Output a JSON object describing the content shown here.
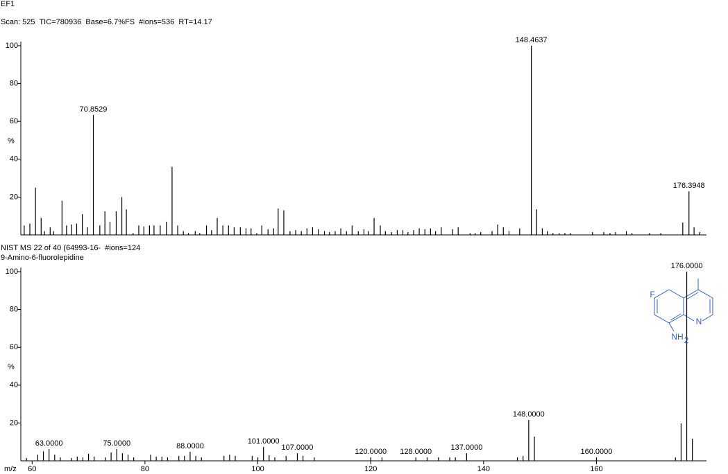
{
  "chart_data": [
    {
      "type": "stem",
      "title": "EF1",
      "subtitle": "Scan: 525  TIC=780936  Base=6.7%FS  #ions=536  RT=14.17",
      "ylabel": "%",
      "color": "#000000",
      "xlim": [
        58,
        179.5
      ],
      "ylim": [
        0,
        100
      ],
      "yticks": [
        20,
        40,
        60,
        80,
        100
      ],
      "x": [
        58.6,
        59.6,
        60.6,
        61.6,
        62.2,
        63.2,
        63.8,
        65.3,
        66.1,
        67.0,
        67.9,
        68.9,
        69.8,
        70.8529,
        72.0,
        72.9,
        73.8,
        74.9,
        75.9,
        76.7,
        77.9,
        78.9,
        79.8,
        80.8,
        81.6,
        82.7,
        83.8,
        84.8,
        85.8,
        86.8,
        87.7,
        88.9,
        89.7,
        90.9,
        91.8,
        92.8,
        93.8,
        94.8,
        95.8,
        96.9,
        97.9,
        98.8,
        99.8,
        100.7,
        101.8,
        102.8,
        103.6,
        104.6,
        105.7,
        106.7,
        107.7,
        108.7,
        109.7,
        110.7,
        111.8,
        112.7,
        113.7,
        114.7,
        115.7,
        116.7,
        117.8,
        118.8,
        119.6,
        120.6,
        121.7,
        122.6,
        123.7,
        124.7,
        125.7,
        126.6,
        127.6,
        128.6,
        129.6,
        130.6,
        131.5,
        132.5,
        134.5,
        135.5,
        137.6,
        138.5,
        139.5,
        141.5,
        142.5,
        143.5,
        144.5,
        146.4,
        148.4637,
        149.4,
        150.4,
        151.3,
        152.3,
        153.4,
        154.4,
        155.4,
        159.3,
        161.3,
        162.4,
        163.4,
        165.3,
        166.3,
        169.4,
        171.4,
        175.3,
        176.3948,
        177.3,
        178.3
      ],
      "values": [
        5,
        6,
        25,
        9,
        2,
        4,
        2,
        18,
        5,
        5.5,
        6,
        11,
        4,
        63.4,
        5,
        12.5,
        7,
        12.5,
        20,
        13.5,
        1,
        5,
        4.5,
        5,
        5,
        5,
        7,
        36,
        5,
        2,
        1,
        2,
        1,
        5,
        2.5,
        9,
        5,
        5,
        4,
        4,
        3.5,
        3.5,
        1,
        5,
        3,
        3.5,
        14,
        13,
        2,
        2.5,
        2,
        3.5,
        4,
        3,
        2,
        1.5,
        2,
        3.5,
        2,
        5,
        2,
        3,
        2,
        9,
        5,
        2,
        1.5,
        2.5,
        2.5,
        1.5,
        2.5,
        3.5,
        3,
        3.5,
        2,
        4,
        3,
        4,
        1,
        1,
        1.5,
        2,
        5.5,
        4,
        2,
        3.5,
        100,
        13.5,
        3.5,
        2,
        1,
        1,
        1,
        1,
        1.5,
        1.5,
        1,
        1.5,
        2,
        1,
        1,
        1,
        6.5,
        23,
        4,
        1.5
      ],
      "x_labels": [
        null,
        null,
        null,
        null,
        null,
        null,
        null,
        null,
        null,
        null,
        null,
        null,
        null,
        "70.8529",
        null,
        null,
        null,
        null,
        null,
        null,
        null,
        null,
        null,
        null,
        null,
        null,
        null,
        null,
        null,
        null,
        null,
        null,
        null,
        null,
        null,
        null,
        null,
        null,
        null,
        null,
        null,
        null,
        null,
        null,
        null,
        null,
        null,
        null,
        null,
        null,
        null,
        null,
        null,
        null,
        null,
        null,
        null,
        null,
        null,
        null,
        null,
        null,
        null,
        null,
        null,
        null,
        null,
        null,
        null,
        null,
        null,
        null,
        null,
        null,
        null,
        null,
        null,
        null,
        null,
        null,
        null,
        null,
        null,
        null,
        null,
        null,
        "148.4637",
        null,
        null,
        null,
        null,
        null,
        null,
        null,
        null,
        null,
        null,
        null,
        null,
        null,
        null,
        null,
        null,
        "176.3948",
        null,
        null
      ]
    },
    {
      "type": "stem",
      "title": "NIST MS 22 of 40 (64993-16-  #ions=124",
      "subtitle": "9-Amino-6-fluorolepidine",
      "ylabel": "%",
      "xlabel": "m/z",
      "color": "#000000",
      "xlim": [
        58,
        179.5
      ],
      "ylim": [
        0,
        100
      ],
      "yticks": [
        20,
        40,
        60,
        80,
        100
      ],
      "xticks": [
        60,
        80,
        100,
        120,
        140,
        160
      ],
      "x": [
        59,
        61,
        62,
        63,
        64,
        65,
        67,
        68,
        69,
        70,
        71,
        73,
        74,
        75,
        76,
        77,
        78,
        81,
        82,
        83,
        84,
        86,
        87,
        88,
        89,
        90,
        94,
        95,
        96,
        99,
        100,
        101,
        102,
        103,
        105,
        107,
        108,
        110,
        120,
        122,
        128,
        130,
        132,
        134,
        135,
        137,
        146,
        147,
        148,
        149,
        160,
        174,
        175,
        176,
        177
      ],
      "values": [
        1.5,
        3.3,
        5,
        6.2,
        3.3,
        1.8,
        1.5,
        2.2,
        1.8,
        3.7,
        2.2,
        1.8,
        4.4,
        6.2,
        4,
        3.3,
        1.8,
        3.3,
        2.2,
        2.2,
        1.8,
        2.6,
        2.6,
        4.8,
        2.6,
        1.8,
        2.6,
        3.3,
        2.6,
        2.6,
        1.8,
        7.3,
        3,
        1.8,
        2.6,
        4,
        2.6,
        1.8,
        1.8,
        1.8,
        1.8,
        1.8,
        1.8,
        1.8,
        1.8,
        4,
        1.8,
        2.6,
        21.6,
        12.8,
        1.8,
        1.8,
        19.8,
        100,
        11.7
      ],
      "x_labels": [
        null,
        null,
        null,
        "63.0000",
        null,
        null,
        null,
        null,
        null,
        null,
        null,
        null,
        null,
        "75.0000",
        null,
        null,
        null,
        null,
        null,
        null,
        null,
        null,
        null,
        "88.0000",
        null,
        null,
        null,
        null,
        null,
        null,
        null,
        "101.0000",
        null,
        null,
        null,
        "107.0000",
        null,
        null,
        "120.0000",
        null,
        "128.0000",
        null,
        null,
        null,
        null,
        "137.0000",
        null,
        null,
        "148.0000",
        null,
        "160.0000",
        null,
        null,
        "176.0000",
        null
      ],
      "structure_labels": [
        "F",
        "N",
        "NH",
        "2"
      ],
      "structure_color": "#3060c0"
    }
  ]
}
